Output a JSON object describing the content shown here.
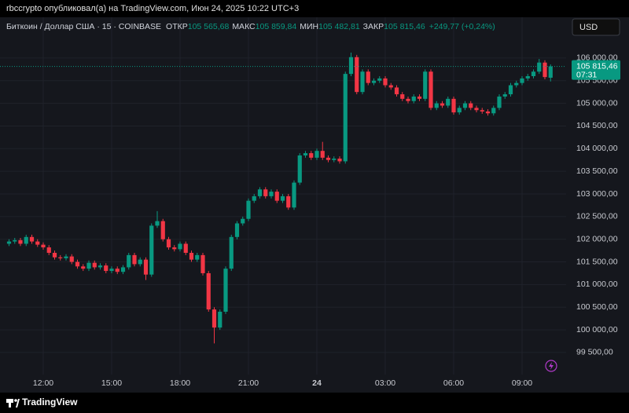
{
  "header": {
    "published": "rbccrypto опубликовал(а) на TradingView.com, Июн 24, 2025 10:22 UTC+3"
  },
  "chart_data": {
    "type": "candlestick",
    "symbol": "Биткоин / Доллар США · 15 · COINBASE",
    "stats": [
      {
        "label": "ОТКР",
        "value": "105 565,68"
      },
      {
        "label": "МАКС",
        "value": "105 859,84"
      },
      {
        "label": "МИН",
        "value": "105 482,81"
      },
      {
        "label": "ЗАКР",
        "value": "105 815,46"
      }
    ],
    "change": "+249,77 (+0,24%)",
    "currency": "USD",
    "categories": [
      null,
      null,
      null,
      null,
      null,
      null,
      "12:00",
      null,
      null,
      null,
      null,
      null,
      null,
      null,
      null,
      null,
      null,
      null,
      "15:00",
      null,
      null,
      null,
      null,
      null,
      null,
      null,
      null,
      null,
      null,
      null,
      "18:00",
      null,
      null,
      null,
      null,
      null,
      null,
      null,
      null,
      null,
      null,
      null,
      "21:00",
      null,
      null,
      null,
      null,
      null,
      null,
      null,
      null,
      null,
      null,
      null,
      "24",
      null,
      null,
      null,
      null,
      null,
      null,
      null,
      null,
      null,
      null,
      null,
      "03:00",
      null,
      null,
      null,
      null,
      null,
      null,
      null,
      null,
      null,
      null,
      null,
      "06:00",
      null,
      null,
      null,
      null,
      null,
      null,
      null,
      null,
      null,
      null,
      null,
      "09:00",
      null,
      null,
      null,
      null,
      null
    ],
    "open": [
      101900,
      101950,
      101980,
      101900,
      102050,
      101950,
      101880,
      101820,
      101700,
      101600,
      101580,
      101620,
      101500,
      101400,
      101350,
      101480,
      101380,
      101420,
      101300,
      101350,
      101280,
      101380,
      101650,
      101450,
      101550,
      101220,
      102300,
      102400,
      102000,
      101820,
      101780,
      101900,
      101700,
      101550,
      101650,
      101250,
      100450,
      100050,
      100400,
      101350,
      102050,
      102350,
      102450,
      102850,
      102950,
      103100,
      102950,
      103050,
      102850,
      102950,
      102700,
      103250,
      103850,
      103900,
      103800,
      103950,
      103800,
      103750,
      103780,
      103720,
      105650,
      106020,
      105250,
      105700,
      105450,
      105500,
      105550,
      105400,
      105350,
      105200,
      105100,
      105050,
      105150,
      105100,
      105700,
      104900,
      105000,
      104950,
      105100,
      104800,
      104900,
      105000,
      104900,
      104850,
      104820,
      104780,
      104900,
      105150,
      105200,
      105400,
      105450,
      105550,
      105600,
      105700,
      105900,
      105565.68
    ],
    "high": [
      102000,
      102030,
      102030,
      102100,
      102100,
      102000,
      101930,
      101870,
      101750,
      101650,
      101670,
      101670,
      101550,
      101450,
      101530,
      101530,
      101470,
      101470,
      101400,
      101400,
      101430,
      101700,
      101700,
      101600,
      101600,
      102350,
      102620,
      102450,
      102050,
      101870,
      101950,
      101950,
      101750,
      101700,
      101700,
      101300,
      100500,
      100450,
      101400,
      102100,
      102400,
      102500,
      102900,
      103000,
      103150,
      103150,
      103100,
      103100,
      103000,
      103000,
      103300,
      103900,
      103950,
      103950,
      104000,
      104150,
      103850,
      103830,
      103830,
      105700,
      106120,
      106070,
      105750,
      105750,
      105550,
      105600,
      105600,
      105450,
      105400,
      105250,
      105150,
      105200,
      105200,
      105750,
      105750,
      105050,
      105050,
      105150,
      105150,
      104950,
      105050,
      105050,
      104950,
      104900,
      104870,
      104950,
      105200,
      105250,
      105450,
      105500,
      105600,
      105650,
      105750,
      105980,
      105950,
      105859.84
    ],
    "low": [
      101850,
      101900,
      101850,
      101850,
      101900,
      101830,
      101770,
      101650,
      101550,
      101530,
      101530,
      101450,
      101350,
      101300,
      101300,
      101330,
      101330,
      101250,
      101250,
      101230,
      101230,
      101330,
      101400,
      101400,
      101100,
      101170,
      102250,
      101950,
      101770,
      101730,
      101730,
      101650,
      101500,
      101500,
      101200,
      100400,
      99700,
      100000,
      100350,
      101300,
      102000,
      102300,
      102400,
      102800,
      102900,
      102900,
      102900,
      102800,
      102800,
      102650,
      102650,
      103200,
      103800,
      103750,
      103750,
      103750,
      103700,
      103700,
      103670,
      103670,
      105600,
      105200,
      105200,
      105400,
      105400,
      105450,
      105350,
      105300,
      105150,
      105050,
      105000,
      105000,
      105050,
      105050,
      104850,
      104850,
      104900,
      104900,
      104750,
      104750,
      104850,
      104850,
      104800,
      104770,
      104730,
      104730,
      104850,
      105100,
      105150,
      105350,
      105400,
      105500,
      105550,
      105650,
      105530,
      105482.81
    ],
    "close": [
      101950,
      101980,
      101900,
      102050,
      101950,
      101880,
      101820,
      101700,
      101600,
      101580,
      101620,
      101500,
      101400,
      101350,
      101480,
      101380,
      101420,
      101300,
      101350,
      101280,
      101380,
      101650,
      101450,
      101550,
      101220,
      102300,
      102400,
      102000,
      101820,
      101780,
      101900,
      101700,
      101550,
      101650,
      101250,
      100450,
      100050,
      100400,
      101350,
      102050,
      102350,
      102450,
      102850,
      102950,
      103100,
      102950,
      103050,
      102850,
      102950,
      102700,
      103250,
      103850,
      103900,
      103800,
      103950,
      103800,
      103750,
      103780,
      103720,
      105650,
      106020,
      105250,
      105700,
      105450,
      105500,
      105550,
      105400,
      105350,
      105200,
      105100,
      105050,
      105150,
      105100,
      105700,
      104900,
      105000,
      104950,
      105100,
      104800,
      104900,
      105000,
      104900,
      104850,
      104820,
      104780,
      104900,
      105150,
      105200,
      105400,
      105450,
      105550,
      105600,
      105700,
      105900,
      105580,
      105815.46
    ],
    "up_color": "#089981",
    "down_color": "#f23645",
    "ylim": [
      99100,
      106900
    ],
    "yticks": [
      {
        "value": 99500,
        "label": "99 500,00"
      },
      {
        "value": 100000,
        "label": "100 000,00"
      },
      {
        "value": 100500,
        "label": "100 500,00"
      },
      {
        "value": 101000,
        "label": "101 000,00"
      },
      {
        "value": 101500,
        "label": "101 500,00"
      },
      {
        "value": 102000,
        "label": "102 000,00"
      },
      {
        "value": 102500,
        "label": "102 500,00"
      },
      {
        "value": 103000,
        "label": "103 000,00"
      },
      {
        "value": 103500,
        "label": "103 500,00"
      },
      {
        "value": 104000,
        "label": "104 000,00"
      },
      {
        "value": 104500,
        "label": "104 500,00"
      },
      {
        "value": 105000,
        "label": "105 000,00"
      },
      {
        "value": 105500,
        "label": "105 500,00"
      },
      {
        "value": 106000,
        "label": "106 000,00"
      }
    ],
    "grid": true,
    "last_price": {
      "value": 105815.46,
      "label": "105 815,46"
    },
    "countdown": "07:31"
  },
  "footer": {
    "brand": "TradingView"
  }
}
